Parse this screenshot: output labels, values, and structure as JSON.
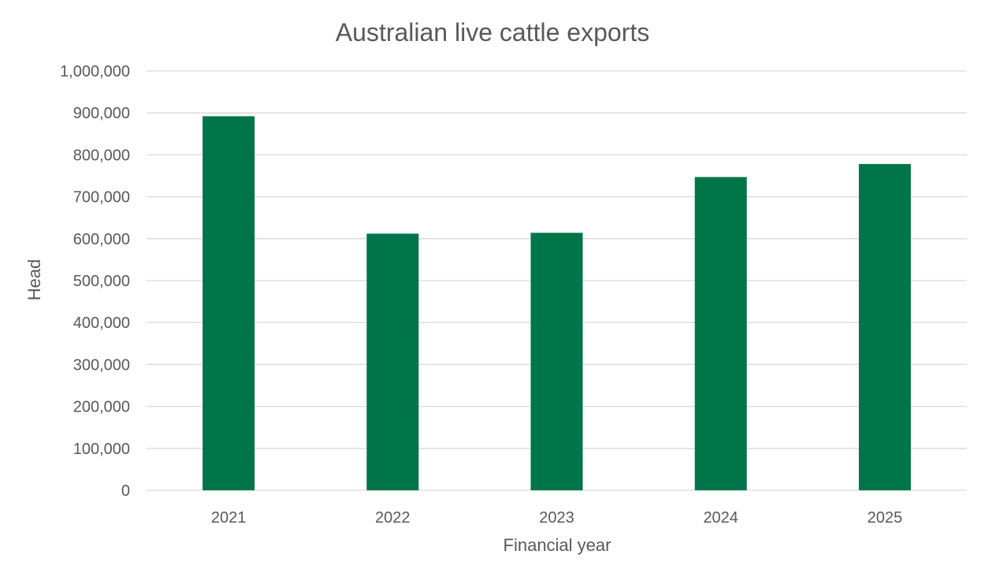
{
  "chart_data": {
    "type": "bar",
    "title": "Australian live cattle exports",
    "xlabel": "Financial year",
    "ylabel": "Head",
    "categories": [
      "2021",
      "2022",
      "2023",
      "2024",
      "2025"
    ],
    "series": [
      {
        "values": [
          892000,
          612000,
          614000,
          747000,
          778000
        ]
      }
    ],
    "ylim": [
      0,
      1000000
    ],
    "yticks": [
      0,
      100000,
      200000,
      300000,
      400000,
      500000,
      600000,
      700000,
      800000,
      900000,
      1000000
    ],
    "ytick_labels": [
      "0",
      "100,000",
      "200,000",
      "300,000",
      "400,000",
      "500,000",
      "600,000",
      "700,000",
      "800,000",
      "900,000",
      "1,000,000"
    ],
    "grid": true,
    "legend": "none",
    "bar_color": "#00754a"
  }
}
